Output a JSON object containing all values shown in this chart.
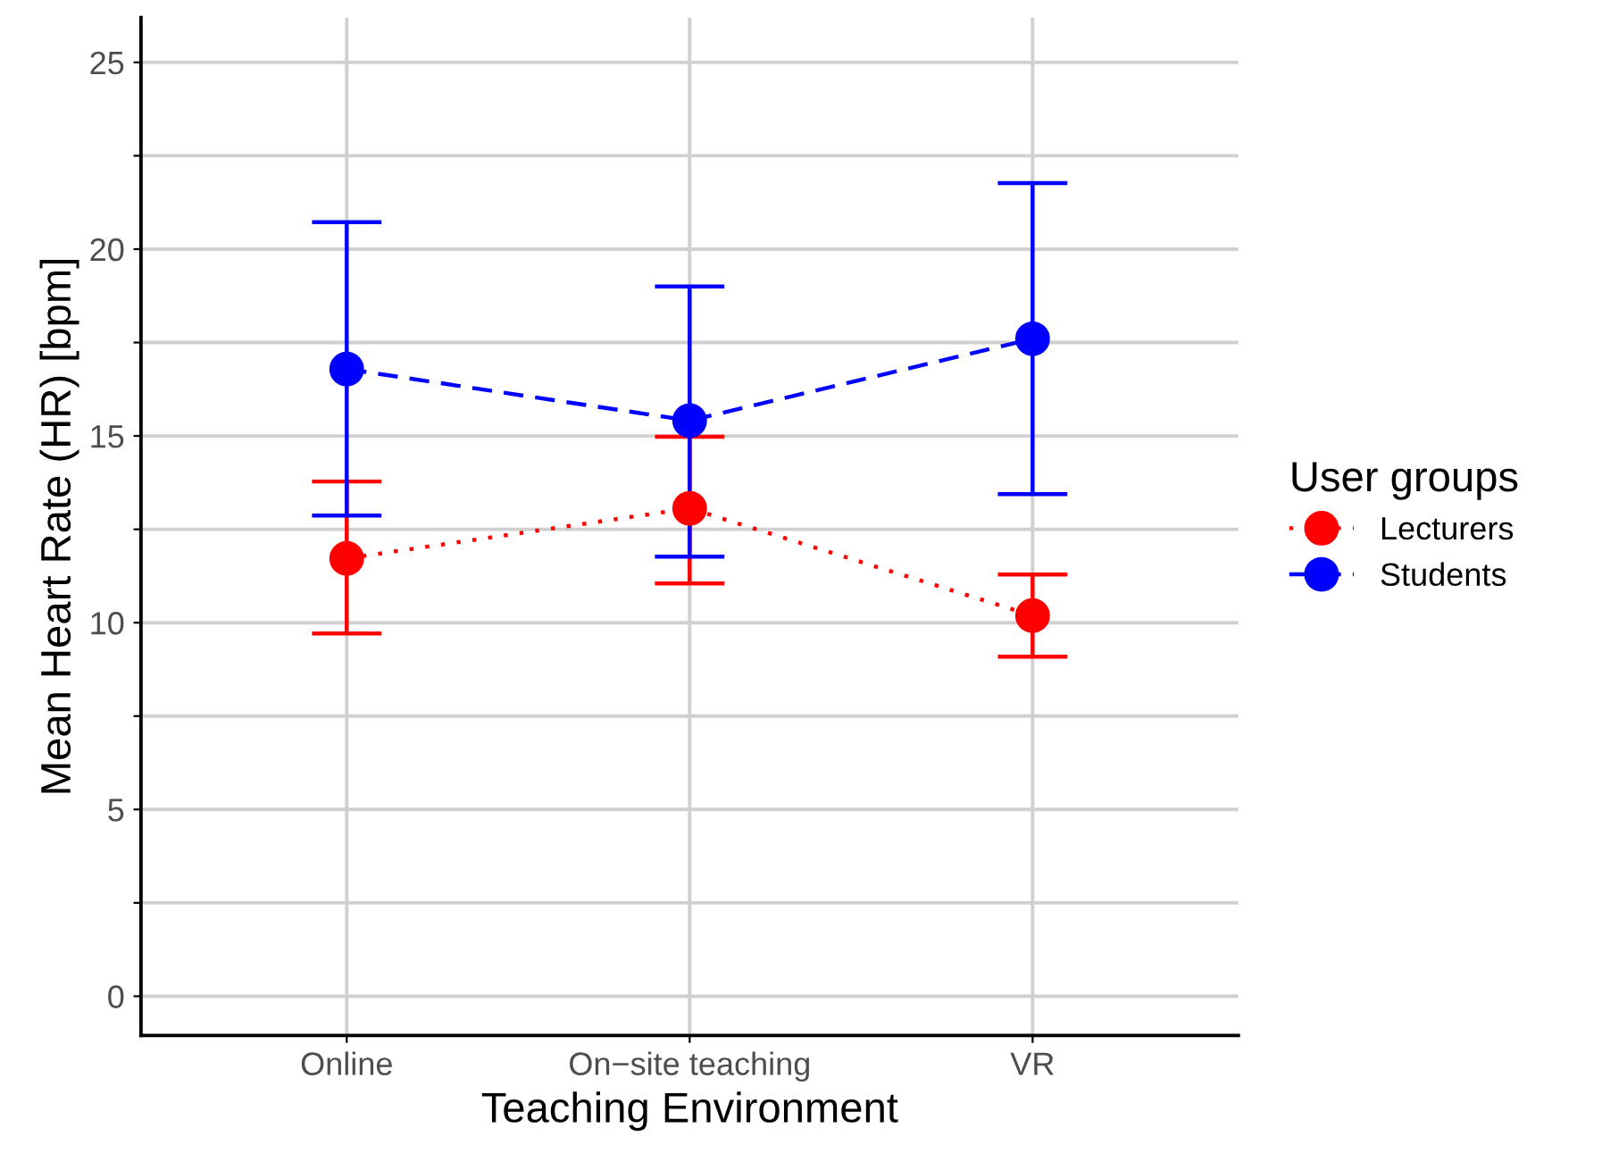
{
  "chart_data": {
    "type": "line",
    "xlabel": "Teaching Environment",
    "ylabel": "Mean Heart Rate (HR) [bpm]",
    "legend_title": "User groups",
    "legend": "right",
    "grid": true,
    "marker": "circle",
    "categories": [
      "Online",
      "On−site teaching",
      "VR"
    ],
    "ylim": [
      -1.05,
      26.2
    ],
    "yticks": [
      0,
      {
        "value": 2.5,
        "label": null
      },
      5,
      {
        "value": 7.5,
        "label": null
      },
      10,
      {
        "value": 12.5,
        "label": null
      },
      15,
      {
        "value": 17.5,
        "label": null
      },
      20,
      {
        "value": 22.5,
        "label": null
      },
      25
    ],
    "series": [
      {
        "name": "Lecturers",
        "color": "#ff0000",
        "line_style": "dotted",
        "values": [
          11.72,
          13.06,
          10.19
        ],
        "errors": [
          [
            9.71,
            13.78
          ],
          [
            11.05,
            14.98
          ],
          [
            9.09,
            11.29
          ]
        ]
      },
      {
        "name": "Students",
        "color": "#0000ff",
        "line_style": "dashed",
        "values": [
          16.79,
          15.41,
          17.6
        ],
        "errors": [
          [
            12.87,
            20.72
          ],
          [
            11.77,
            19.0
          ],
          [
            13.44,
            21.77
          ]
        ]
      }
    ]
  }
}
